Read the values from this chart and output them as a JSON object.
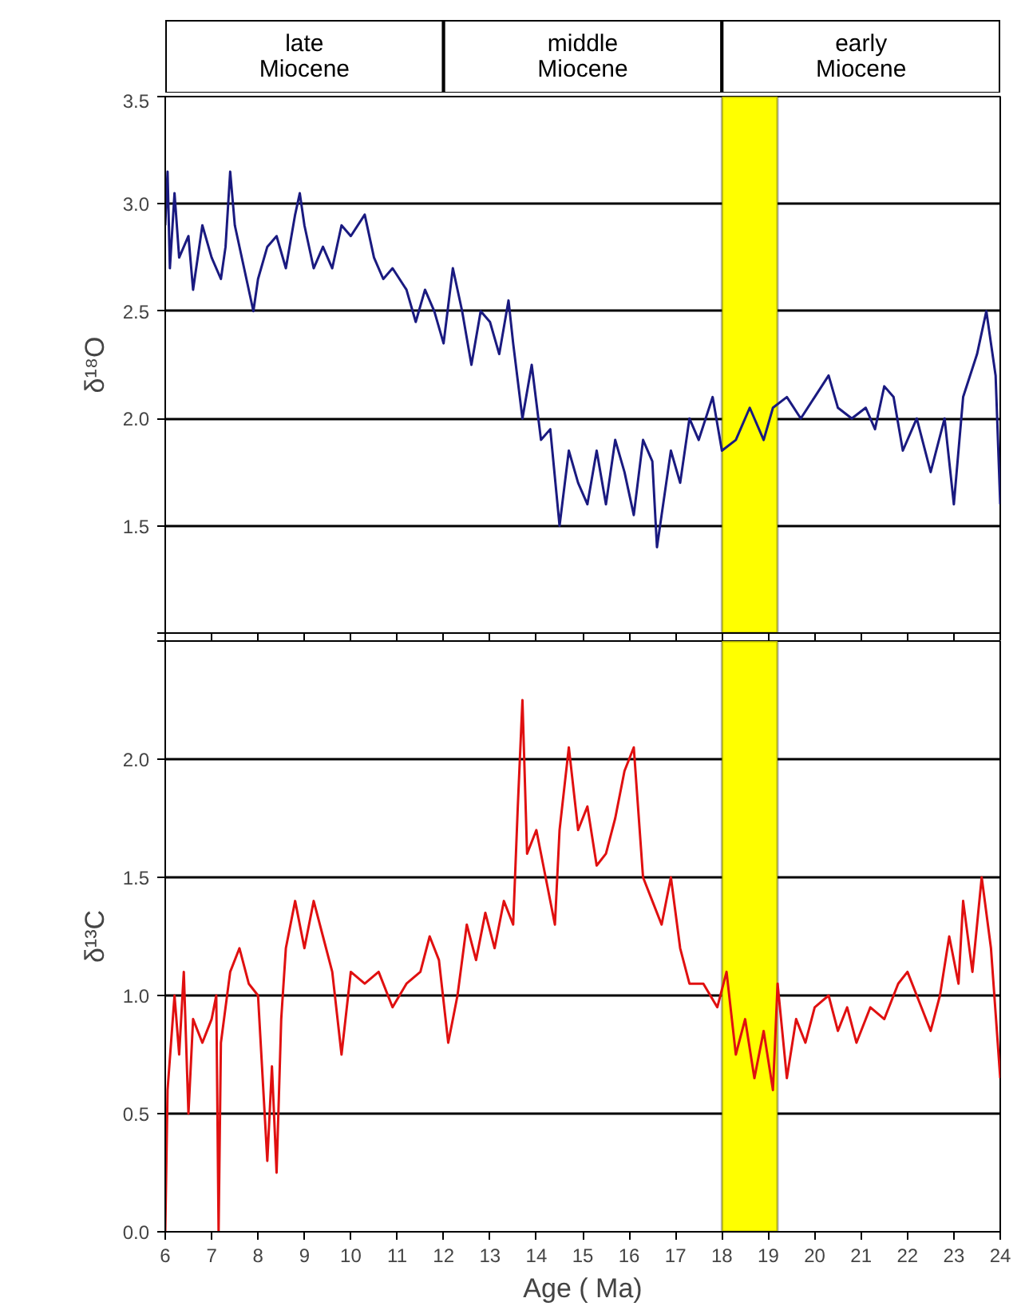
{
  "chart_data": [
    {
      "type": "other",
      "annotations": [
        "late\nMiocene",
        "middle\nMiocene",
        "early\nMiocene"
      ]
    },
    {
      "type": "line",
      "ylabel": "δ¹⁸O",
      "tick_labels": "y",
      "grid": "y",
      "xlim": [
        6,
        24
      ],
      "xticks": [
        6,
        7,
        8,
        9,
        10,
        11,
        12,
        13,
        14,
        15,
        16,
        17,
        18,
        19,
        20,
        21,
        22,
        23,
        24
      ],
      "ylim": [
        1.0,
        3.5
      ],
      "yticks": [
        {
          "value": 1.0,
          "label": null
        },
        1.5,
        {
          "value": 2.0,
          "label": "2.0"
        },
        2.5,
        {
          "value": 3.0,
          "label": "3.0"
        },
        3.5
      ],
      "bands": [
        {
          "axis": "x",
          "from": 18,
          "to": 19.2,
          "label": null,
          "color": "#ffff00"
        }
      ],
      "x": [
        6.0,
        6.05,
        6.1,
        6.2,
        6.3,
        6.5,
        6.6,
        6.8,
        7.0,
        7.2,
        7.3,
        7.4,
        7.5,
        7.7,
        7.9,
        8.0,
        8.2,
        8.4,
        8.6,
        8.8,
        8.9,
        9.0,
        9.2,
        9.4,
        9.6,
        9.8,
        10.0,
        10.3,
        10.5,
        10.7,
        10.9,
        11.2,
        11.4,
        11.6,
        11.8,
        12.0,
        12.2,
        12.4,
        12.6,
        12.8,
        13.0,
        13.2,
        13.4,
        13.5,
        13.7,
        13.9,
        14.1,
        14.3,
        14.5,
        14.7,
        14.9,
        15.1,
        15.3,
        15.5,
        15.7,
        15.9,
        16.1,
        16.3,
        16.5,
        16.6,
        16.7,
        16.9,
        17.1,
        17.3,
        17.5,
        17.8,
        18.0,
        18.3,
        18.6,
        18.9,
        19.1,
        19.4,
        19.7,
        20.0,
        20.3,
        20.5,
        20.8,
        21.1,
        21.3,
        21.5,
        21.7,
        21.9,
        22.2,
        22.5,
        22.8,
        23.0,
        23.2,
        23.5,
        23.7,
        23.9,
        24.0
      ],
      "series": [
        {
          "color": "#1a1a80",
          "values": [
            2.9,
            3.15,
            2.7,
            3.05,
            2.75,
            2.85,
            2.6,
            2.9,
            2.75,
            2.65,
            2.8,
            3.15,
            2.9,
            2.7,
            2.5,
            2.65,
            2.8,
            2.85,
            2.7,
            2.95,
            3.05,
            2.9,
            2.7,
            2.8,
            2.7,
            2.9,
            2.85,
            2.95,
            2.75,
            2.65,
            2.7,
            2.6,
            2.45,
            2.6,
            2.5,
            2.35,
            2.7,
            2.5,
            2.25,
            2.5,
            2.45,
            2.3,
            2.55,
            2.35,
            2.0,
            2.25,
            1.9,
            1.95,
            1.5,
            1.85,
            1.7,
            1.6,
            1.85,
            1.6,
            1.9,
            1.75,
            1.55,
            1.9,
            1.8,
            1.4,
            1.55,
            1.85,
            1.7,
            2.0,
            1.9,
            2.1,
            1.85,
            1.9,
            2.05,
            1.9,
            2.05,
            2.1,
            2.0,
            2.1,
            2.2,
            2.05,
            2.0,
            2.05,
            1.95,
            2.15,
            2.1,
            1.85,
            2.0,
            1.75,
            2.0,
            1.6,
            2.1,
            2.3,
            2.5,
            2.2,
            1.6
          ]
        }
      ]
    },
    {
      "type": "line",
      "ylabel": "δ¹³C",
      "xlabel": "Age ( Ma)",
      "grid": "y",
      "xlim": [
        6,
        24
      ],
      "xticks": [
        6,
        7,
        8,
        9,
        10,
        11,
        12,
        13,
        14,
        15,
        16,
        17,
        18,
        19,
        20,
        21,
        22,
        23,
        24
      ],
      "ylim": [
        0,
        2.5
      ],
      "yticks": [
        {
          "value": 0,
          "label": "0.0"
        },
        0.5,
        {
          "value": 1.0,
          "label": "1.0"
        },
        1.5,
        {
          "value": 2.0,
          "label": "2.0"
        },
        {
          "value": 2.5,
          "label": null
        }
      ],
      "bands": [
        {
          "axis": "x",
          "from": 18,
          "to": 19.2,
          "label": null,
          "color": "#ffff00"
        }
      ],
      "x": [
        6.0,
        6.05,
        6.2,
        6.3,
        6.4,
        6.5,
        6.6,
        6.8,
        7.0,
        7.1,
        7.15,
        7.2,
        7.4,
        7.6,
        7.8,
        8.0,
        8.2,
        8.3,
        8.4,
        8.5,
        8.6,
        8.8,
        9.0,
        9.2,
        9.4,
        9.6,
        9.8,
        10.0,
        10.3,
        10.6,
        10.9,
        11.2,
        11.5,
        11.7,
        11.9,
        12.1,
        12.3,
        12.5,
        12.7,
        12.9,
        13.1,
        13.3,
        13.5,
        13.6,
        13.7,
        13.8,
        14.0,
        14.2,
        14.4,
        14.5,
        14.7,
        14.9,
        15.1,
        15.3,
        15.5,
        15.7,
        15.9,
        16.1,
        16.3,
        16.5,
        16.7,
        16.9,
        17.1,
        17.3,
        17.6,
        17.9,
        18.1,
        18.3,
        18.5,
        18.7,
        18.9,
        19.1,
        19.2,
        19.4,
        19.6,
        19.8,
        20.0,
        20.3,
        20.5,
        20.7,
        20.9,
        21.2,
        21.5,
        21.8,
        22.0,
        22.3,
        22.5,
        22.7,
        22.9,
        23.1,
        23.2,
        23.4,
        23.6,
        23.8,
        24.0
      ],
      "series": [
        {
          "color": "#e01010",
          "values": [
            0.0,
            0.6,
            1.0,
            0.75,
            1.1,
            0.5,
            0.9,
            0.8,
            0.9,
            1.0,
            0.0,
            0.8,
            1.1,
            1.2,
            1.05,
            1.0,
            0.3,
            0.7,
            0.25,
            0.9,
            1.2,
            1.4,
            1.2,
            1.4,
            1.25,
            1.1,
            0.75,
            1.1,
            1.05,
            1.1,
            0.95,
            1.05,
            1.1,
            1.25,
            1.15,
            0.8,
            1.0,
            1.3,
            1.15,
            1.35,
            1.2,
            1.4,
            1.3,
            1.8,
            2.25,
            1.6,
            1.7,
            1.5,
            1.3,
            1.7,
            2.05,
            1.7,
            1.8,
            1.55,
            1.6,
            1.75,
            1.95,
            2.05,
            1.5,
            1.4,
            1.3,
            1.5,
            1.2,
            1.05,
            1.05,
            0.95,
            1.1,
            0.75,
            0.9,
            0.65,
            0.85,
            0.6,
            1.05,
            0.65,
            0.9,
            0.8,
            0.95,
            1.0,
            0.85,
            0.95,
            0.8,
            0.95,
            0.9,
            1.05,
            1.1,
            0.95,
            0.85,
            1.0,
            1.25,
            1.05,
            1.4,
            1.1,
            1.5,
            1.2,
            0.65
          ]
        }
      ]
    }
  ]
}
